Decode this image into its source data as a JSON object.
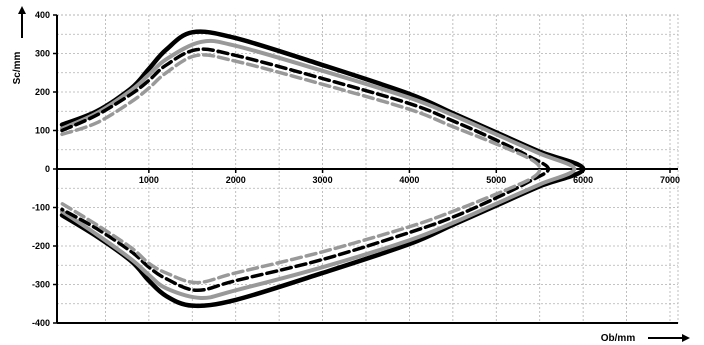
{
  "chart_data": {
    "type": "line",
    "xlabel": "Ob/mm",
    "ylabel": "Sc/mm",
    "xlim": [
      -50,
      7000
    ],
    "ylim": [
      -400,
      400
    ],
    "xticks": [
      1000,
      2000,
      3000,
      4000,
      5000,
      6000,
      7000
    ],
    "yticks": [
      -400,
      -300,
      -200,
      -100,
      0,
      100,
      200,
      300,
      400
    ],
    "x_tick_labels": [
      "1000",
      "2000",
      "3000",
      "4000",
      "5000",
      "6000",
      "7000"
    ],
    "y_tick_labels": [
      "-400",
      "-300",
      "-200",
      "-100",
      "0",
      "100",
      "200",
      "300",
      "400"
    ],
    "grid": true,
    "series": [
      {
        "color": "#000000",
        "style": "solid",
        "width": 4.5,
        "x": [
          0,
          400,
          800,
          1000,
          1200,
          1500,
          2000,
          3000,
          4000,
          4500,
          5000,
          5500,
          6000,
          5500,
          5000,
          4500,
          4000,
          3000,
          2000,
          1500,
          1200,
          1000,
          800,
          400,
          0
        ],
        "y": [
          115,
          150,
          210,
          260,
          310,
          355,
          340,
          270,
          195,
          145,
          95,
          45,
          0,
          -45,
          -95,
          -145,
          -195,
          -270,
          -340,
          -355,
          -330,
          -290,
          -240,
          -175,
          -120
        ]
      },
      {
        "color": "#999999",
        "style": "solid",
        "width": 4,
        "x": [
          0,
          400,
          800,
          1000,
          1200,
          1600,
          2000,
          3000,
          4000,
          4500,
          5000,
          5500,
          5900,
          5500,
          5000,
          4500,
          4000,
          3000,
          2000,
          1600,
          1200,
          1000,
          800,
          400,
          0
        ],
        "y": [
          105,
          145,
          205,
          245,
          285,
          330,
          320,
          255,
          185,
          140,
          90,
          40,
          0,
          -40,
          -90,
          -140,
          -185,
          -255,
          -315,
          -335,
          -310,
          -275,
          -235,
          -170,
          -110
        ]
      },
      {
        "color": "#000000",
        "style": "dashed",
        "width": 3.5,
        "x": [
          0,
          400,
          800,
          1000,
          1200,
          1550,
          2000,
          3000,
          4000,
          4500,
          5000,
          5400,
          5600,
          5400,
          5000,
          4500,
          4000,
          3000,
          2000,
          1550,
          1200,
          1000,
          800,
          400,
          0
        ],
        "y": [
          100,
          140,
          195,
          230,
          270,
          310,
          295,
          235,
          170,
          125,
          75,
          30,
          0,
          -30,
          -75,
          -125,
          -165,
          -235,
          -290,
          -315,
          -285,
          -255,
          -215,
          -155,
          -105
        ]
      },
      {
        "color": "#999999",
        "style": "dashed",
        "width": 3.5,
        "x": [
          0,
          400,
          800,
          1000,
          1200,
          1550,
          2000,
          3000,
          4000,
          4500,
          5000,
          5400,
          5500,
          5400,
          5000,
          4500,
          4000,
          3000,
          2000,
          1550,
          1200,
          1000,
          800,
          400,
          0
        ],
        "y": [
          90,
          120,
          175,
          210,
          250,
          295,
          280,
          220,
          155,
          110,
          65,
          25,
          0,
          -25,
          -65,
          -110,
          -150,
          -215,
          -270,
          -295,
          -270,
          -245,
          -205,
          -145,
          -90
        ]
      }
    ]
  }
}
